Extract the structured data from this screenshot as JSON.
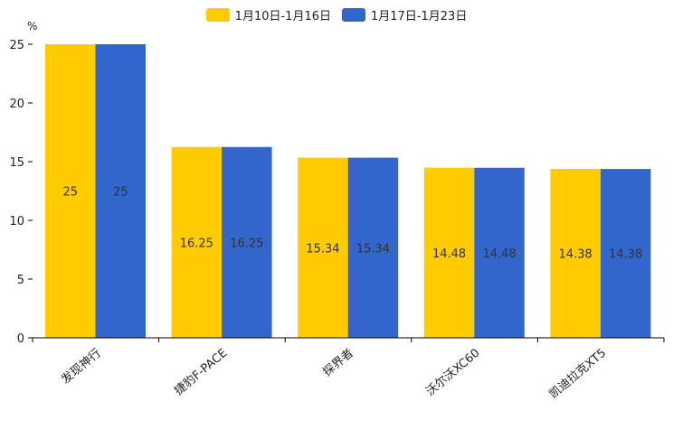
{
  "chart_data": {
    "type": "bar",
    "title": "",
    "xlabel": "",
    "ylabel": "%",
    "ylim": [
      0,
      25
    ],
    "yticks": [
      0,
      5,
      10,
      15,
      20,
      25
    ],
    "categories": [
      "发现神行",
      "捷豹F-PACE",
      "探界者",
      "沃尔沃XC60",
      "凯迪拉克XT5"
    ],
    "series": [
      {
        "name": "1月10日-1月16日",
        "color": "#FFCC00",
        "values": [
          25,
          16.25,
          15.34,
          14.48,
          14.38
        ],
        "labels": [
          "25",
          "16.25",
          "15.34",
          "14.48",
          "14.38"
        ]
      },
      {
        "name": "1月17日-1月23日",
        "color": "#3366CC",
        "values": [
          25,
          16.25,
          15.34,
          14.48,
          14.38
        ],
        "labels": [
          "25",
          "16.25",
          "15.34",
          "14.48",
          "14.38"
        ]
      }
    ],
    "legend_position": "top-center",
    "grid": false
  }
}
